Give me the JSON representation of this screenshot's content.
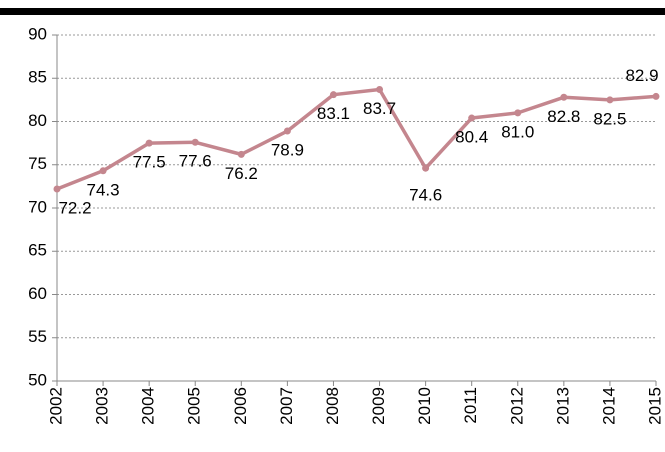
{
  "chart_data": {
    "type": "line",
    "categories": [
      "2002",
      "2003",
      "2004",
      "2005",
      "2006",
      "2007",
      "2008",
      "2009",
      "2010",
      "2011",
      "2012",
      "2013",
      "2014",
      "2015"
    ],
    "series": [
      {
        "color": "#c4868e",
        "values": [
          72.2,
          74.3,
          77.5,
          77.6,
          76.2,
          78.9,
          83.1,
          83.7,
          74.6,
          80.4,
          81.0,
          82.8,
          82.5,
          82.9
        ],
        "value_labels": [
          "72.2",
          "74.3",
          "77.5",
          "77.6",
          "76.2",
          "78.9",
          "83.1",
          "83.7",
          "74.6",
          "80.4",
          "81.0",
          "82.8",
          "82.5",
          "82.9"
        ]
      }
    ],
    "ylim": [
      50,
      90
    ],
    "yticks": [
      50,
      55,
      60,
      65,
      70,
      75,
      80,
      85,
      90
    ],
    "grid": true
  }
}
